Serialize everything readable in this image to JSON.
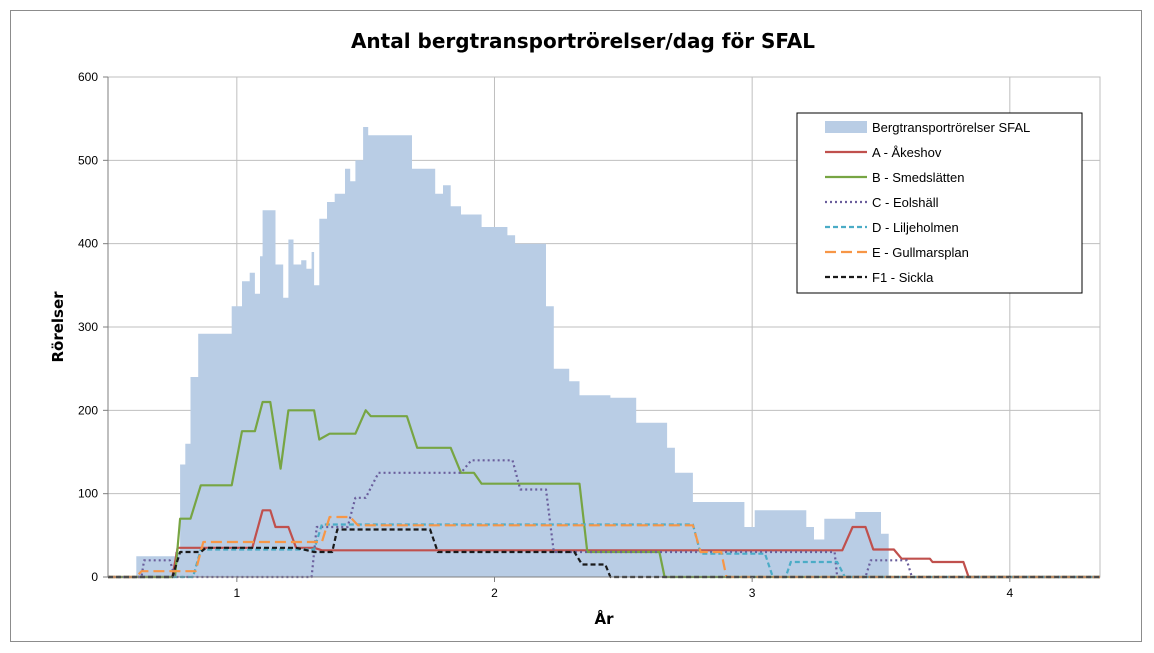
{
  "chart_data": {
    "type": "area",
    "title": "Antal bergtransportrörelser/dag för SFAL",
    "xlabel": "År",
    "ylabel": "Rörelser",
    "xlim": [
      0.5,
      4.35
    ],
    "ylim": [
      0,
      600
    ],
    "xticks": [
      1,
      2,
      3,
      4
    ],
    "yticks": [
      0,
      100,
      200,
      300,
      400,
      500,
      600
    ],
    "grid": true,
    "legend_position": "top-right",
    "series": [
      {
        "name": "Bergtransportrörelser SFAL",
        "kind": "area",
        "color": "#b9cde5",
        "style": "fill",
        "points": [
          [
            0.5,
            0
          ],
          [
            0.61,
            0
          ],
          [
            0.61,
            25
          ],
          [
            0.76,
            25
          ],
          [
            0.76,
            30
          ],
          [
            0.78,
            30
          ],
          [
            0.78,
            135
          ],
          [
            0.8,
            135
          ],
          [
            0.8,
            160
          ],
          [
            0.82,
            160
          ],
          [
            0.82,
            240
          ],
          [
            0.85,
            240
          ],
          [
            0.85,
            292
          ],
          [
            0.98,
            292
          ],
          [
            0.98,
            325
          ],
          [
            1.02,
            325
          ],
          [
            1.02,
            355
          ],
          [
            1.05,
            355
          ],
          [
            1.05,
            365
          ],
          [
            1.07,
            365
          ],
          [
            1.07,
            340
          ],
          [
            1.09,
            340
          ],
          [
            1.09,
            385
          ],
          [
            1.1,
            385
          ],
          [
            1.1,
            440
          ],
          [
            1.15,
            440
          ],
          [
            1.15,
            375
          ],
          [
            1.18,
            375
          ],
          [
            1.18,
            335
          ],
          [
            1.2,
            335
          ],
          [
            1.2,
            405
          ],
          [
            1.22,
            405
          ],
          [
            1.22,
            375
          ],
          [
            1.25,
            375
          ],
          [
            1.25,
            380
          ],
          [
            1.27,
            380
          ],
          [
            1.27,
            370
          ],
          [
            1.29,
            370
          ],
          [
            1.29,
            390
          ],
          [
            1.3,
            390
          ],
          [
            1.3,
            350
          ],
          [
            1.32,
            350
          ],
          [
            1.32,
            430
          ],
          [
            1.35,
            430
          ],
          [
            1.35,
            450
          ],
          [
            1.38,
            450
          ],
          [
            1.38,
            460
          ],
          [
            1.42,
            460
          ],
          [
            1.42,
            490
          ],
          [
            1.44,
            490
          ],
          [
            1.44,
            475
          ],
          [
            1.46,
            475
          ],
          [
            1.46,
            500
          ],
          [
            1.49,
            500
          ],
          [
            1.49,
            540
          ],
          [
            1.51,
            540
          ],
          [
            1.51,
            530
          ],
          [
            1.68,
            530
          ],
          [
            1.68,
            490
          ],
          [
            1.77,
            490
          ],
          [
            1.77,
            460
          ],
          [
            1.8,
            460
          ],
          [
            1.8,
            470
          ],
          [
            1.83,
            470
          ],
          [
            1.83,
            445
          ],
          [
            1.87,
            445
          ],
          [
            1.87,
            435
          ],
          [
            1.95,
            435
          ],
          [
            1.95,
            420
          ],
          [
            2.05,
            420
          ],
          [
            2.05,
            410
          ],
          [
            2.08,
            410
          ],
          [
            2.08,
            400
          ],
          [
            2.2,
            400
          ],
          [
            2.2,
            325
          ],
          [
            2.23,
            325
          ],
          [
            2.23,
            250
          ],
          [
            2.29,
            250
          ],
          [
            2.29,
            235
          ],
          [
            2.33,
            235
          ],
          [
            2.33,
            218
          ],
          [
            2.45,
            218
          ],
          [
            2.45,
            215
          ],
          [
            2.55,
            215
          ],
          [
            2.55,
            185
          ],
          [
            2.67,
            185
          ],
          [
            2.67,
            155
          ],
          [
            2.7,
            155
          ],
          [
            2.7,
            125
          ],
          [
            2.77,
            125
          ],
          [
            2.77,
            90
          ],
          [
            2.97,
            90
          ],
          [
            2.97,
            60
          ],
          [
            3.01,
            60
          ],
          [
            3.01,
            80
          ],
          [
            3.21,
            80
          ],
          [
            3.21,
            60
          ],
          [
            3.24,
            60
          ],
          [
            3.24,
            45
          ],
          [
            3.28,
            45
          ],
          [
            3.28,
            70
          ],
          [
            3.4,
            70
          ],
          [
            3.4,
            78
          ],
          [
            3.5,
            78
          ],
          [
            3.5,
            52
          ],
          [
            3.53,
            52
          ],
          [
            3.53,
            0
          ],
          [
            4.35,
            0
          ]
        ]
      },
      {
        "name": "A - Åkeshov",
        "kind": "line",
        "color": "#c0504d",
        "style": "solid",
        "points": [
          [
            0.5,
            0
          ],
          [
            0.75,
            0
          ],
          [
            0.77,
            35
          ],
          [
            1.06,
            35
          ],
          [
            1.1,
            80
          ],
          [
            1.13,
            80
          ],
          [
            1.15,
            60
          ],
          [
            1.2,
            60
          ],
          [
            1.23,
            35
          ],
          [
            1.3,
            35
          ],
          [
            1.33,
            32
          ],
          [
            1.45,
            32
          ],
          [
            1.5,
            32
          ],
          [
            3.35,
            32
          ],
          [
            3.39,
            60
          ],
          [
            3.44,
            60
          ],
          [
            3.47,
            33
          ],
          [
            3.55,
            33
          ],
          [
            3.58,
            22
          ],
          [
            3.69,
            22
          ],
          [
            3.7,
            18
          ],
          [
            3.82,
            18
          ],
          [
            3.84,
            0
          ],
          [
            4.35,
            0
          ]
        ]
      },
      {
        "name": "B - Smedslätten",
        "kind": "line",
        "color": "#77a543",
        "style": "solid",
        "points": [
          [
            0.5,
            0
          ],
          [
            0.76,
            0
          ],
          [
            0.78,
            70
          ],
          [
            0.82,
            70
          ],
          [
            0.86,
            110
          ],
          [
            0.98,
            110
          ],
          [
            1.02,
            175
          ],
          [
            1.07,
            175
          ],
          [
            1.1,
            210
          ],
          [
            1.13,
            210
          ],
          [
            1.17,
            130
          ],
          [
            1.2,
            200
          ],
          [
            1.3,
            200
          ],
          [
            1.32,
            165
          ],
          [
            1.36,
            172
          ],
          [
            1.46,
            172
          ],
          [
            1.5,
            200
          ],
          [
            1.52,
            193
          ],
          [
            1.66,
            193
          ],
          [
            1.7,
            155
          ],
          [
            1.83,
            155
          ],
          [
            1.87,
            125
          ],
          [
            1.92,
            125
          ],
          [
            1.95,
            112
          ],
          [
            2.33,
            112
          ],
          [
            2.36,
            30
          ],
          [
            2.64,
            30
          ],
          [
            2.66,
            0
          ],
          [
            4.35,
            0
          ]
        ]
      },
      {
        "name": "C - Eolshäll",
        "kind": "line",
        "color": "#6a5e9c",
        "style": "dotted",
        "points": [
          [
            0.5,
            0
          ],
          [
            0.63,
            0
          ],
          [
            0.64,
            20
          ],
          [
            0.74,
            20
          ],
          [
            0.76,
            0
          ],
          [
            1.29,
            0
          ],
          [
            1.31,
            60
          ],
          [
            1.43,
            60
          ],
          [
            1.46,
            95
          ],
          [
            1.5,
            95
          ],
          [
            1.55,
            125
          ],
          [
            1.87,
            125
          ],
          [
            1.91,
            140
          ],
          [
            2.07,
            140
          ],
          [
            2.1,
            105
          ],
          [
            2.2,
            105
          ],
          [
            2.23,
            30
          ],
          [
            2.33,
            30
          ],
          [
            2.36,
            30
          ],
          [
            3.1,
            30
          ],
          [
            3.32,
            30
          ],
          [
            3.33,
            0
          ],
          [
            3.44,
            0
          ],
          [
            3.46,
            20
          ],
          [
            3.6,
            20
          ],
          [
            3.62,
            0
          ],
          [
            4.35,
            0
          ]
        ]
      },
      {
        "name": "D - Liljeholmen",
        "kind": "line",
        "color": "#4bacc6",
        "style": "dashed",
        "points": [
          [
            0.5,
            0
          ],
          [
            0.83,
            0
          ],
          [
            0.86,
            33
          ],
          [
            1.02,
            33
          ],
          [
            1.3,
            33
          ],
          [
            1.33,
            63
          ],
          [
            2.15,
            63
          ],
          [
            2.77,
            63
          ],
          [
            2.8,
            28
          ],
          [
            3.05,
            28
          ],
          [
            3.08,
            0
          ],
          [
            3.13,
            0
          ],
          [
            3.15,
            18
          ],
          [
            3.33,
            18
          ],
          [
            3.36,
            0
          ],
          [
            4.35,
            0
          ]
        ]
      },
      {
        "name": "E - Gullmarsplan",
        "kind": "line",
        "color": "#f79646",
        "style": "longdash",
        "points": [
          [
            0.5,
            0
          ],
          [
            0.61,
            0
          ],
          [
            0.63,
            7
          ],
          [
            0.84,
            7
          ],
          [
            0.87,
            42
          ],
          [
            1.23,
            42
          ],
          [
            1.33,
            42
          ],
          [
            1.36,
            72
          ],
          [
            1.44,
            72
          ],
          [
            1.47,
            62
          ],
          [
            2.77,
            62
          ],
          [
            2.8,
            30
          ],
          [
            2.88,
            30
          ],
          [
            2.9,
            0
          ],
          [
            4.35,
            0
          ]
        ]
      },
      {
        "name": "F1 - Sickla",
        "kind": "line",
        "color": "#1a1a1a",
        "style": "dashed",
        "points": [
          [
            0.5,
            0
          ],
          [
            0.75,
            0
          ],
          [
            0.78,
            30
          ],
          [
            0.86,
            30
          ],
          [
            0.88,
            35
          ],
          [
            1.06,
            35
          ],
          [
            1.23,
            35
          ],
          [
            1.3,
            30
          ],
          [
            1.37,
            30
          ],
          [
            1.39,
            57
          ],
          [
            1.75,
            57
          ],
          [
            1.78,
            30
          ],
          [
            2.31,
            30
          ],
          [
            2.34,
            15
          ],
          [
            2.43,
            15
          ],
          [
            2.45,
            0
          ],
          [
            4.35,
            0
          ]
        ]
      }
    ]
  }
}
